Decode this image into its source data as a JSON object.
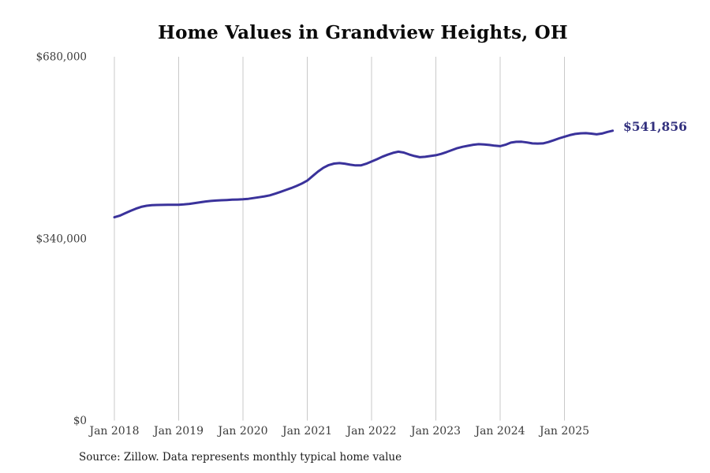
{
  "title": "Home Values in Grandview Heights, OH",
  "source_note": "Source: Zillow. Data represents monthly typical home value",
  "end_label": "$541,856",
  "colors": {
    "line": "#3a329b",
    "end_label_text": "#32307e",
    "gridline": "#c9c9c9",
    "tick_text": "#3c3c3c",
    "title_text": "#0a0a0a",
    "source_text": "#1c1c1c",
    "background": "#ffffff"
  },
  "chart_data": {
    "type": "line",
    "title": "Home Values in Grandview Heights, OH",
    "xlabel": "",
    "ylabel": "",
    "ylim": [
      0,
      680000
    ],
    "grid": "vertical-only",
    "legend": "none",
    "x_start_month": "Jan 2018",
    "x_end_month": "Oct 2025",
    "y_ticks": [
      {
        "label": "$0",
        "value": 0
      },
      {
        "label": "$340,000",
        "value": 340000
      },
      {
        "label": "$680,000",
        "value": 680000
      }
    ],
    "x_ticks": [
      {
        "label": "Jan 2018",
        "month_index": 0
      },
      {
        "label": "Jan 2019",
        "month_index": 12
      },
      {
        "label": "Jan 2020",
        "month_index": 24
      },
      {
        "label": "Jan 2021",
        "month_index": 36
      },
      {
        "label": "Jan 2022",
        "month_index": 48
      },
      {
        "label": "Jan 2023",
        "month_index": 60
      },
      {
        "label": "Jan 2024",
        "month_index": 72
      },
      {
        "label": "Jan 2025",
        "month_index": 84
      }
    ],
    "series": [
      {
        "name": "Monthly typical home value (USD)",
        "final_value": 541856,
        "final_value_label": "$541,856",
        "monthly_values": [
          380000,
          383000,
          387500,
          392000,
          396000,
          399500,
          401500,
          402500,
          403000,
          403200,
          403300,
          403300,
          403500,
          404000,
          405000,
          406500,
          408000,
          409500,
          410500,
          411200,
          411800,
          412300,
          412800,
          413200,
          413600,
          414500,
          416000,
          417500,
          419000,
          421000,
          424000,
          427500,
          431000,
          434500,
          438500,
          443000,
          448500,
          457000,
          465500,
          472500,
          477500,
          480300,
          481200,
          480200,
          478300,
          477000,
          476900,
          480000,
          484200,
          488500,
          493100,
          497000,
          500400,
          502600,
          501000,
          497500,
          494500,
          492300,
          493000,
          494500,
          496000,
          498500,
          501900,
          505500,
          509200,
          511800,
          513700,
          515500,
          516600,
          516200,
          515100,
          513800,
          512900,
          515500,
          519500,
          521000,
          521100,
          519800,
          518100,
          517800,
          518100,
          520500,
          524000,
          527500,
          530600,
          533500,
          535700,
          536900,
          537200,
          536300,
          535000,
          536500,
          539500,
          541856
        ]
      }
    ]
  }
}
